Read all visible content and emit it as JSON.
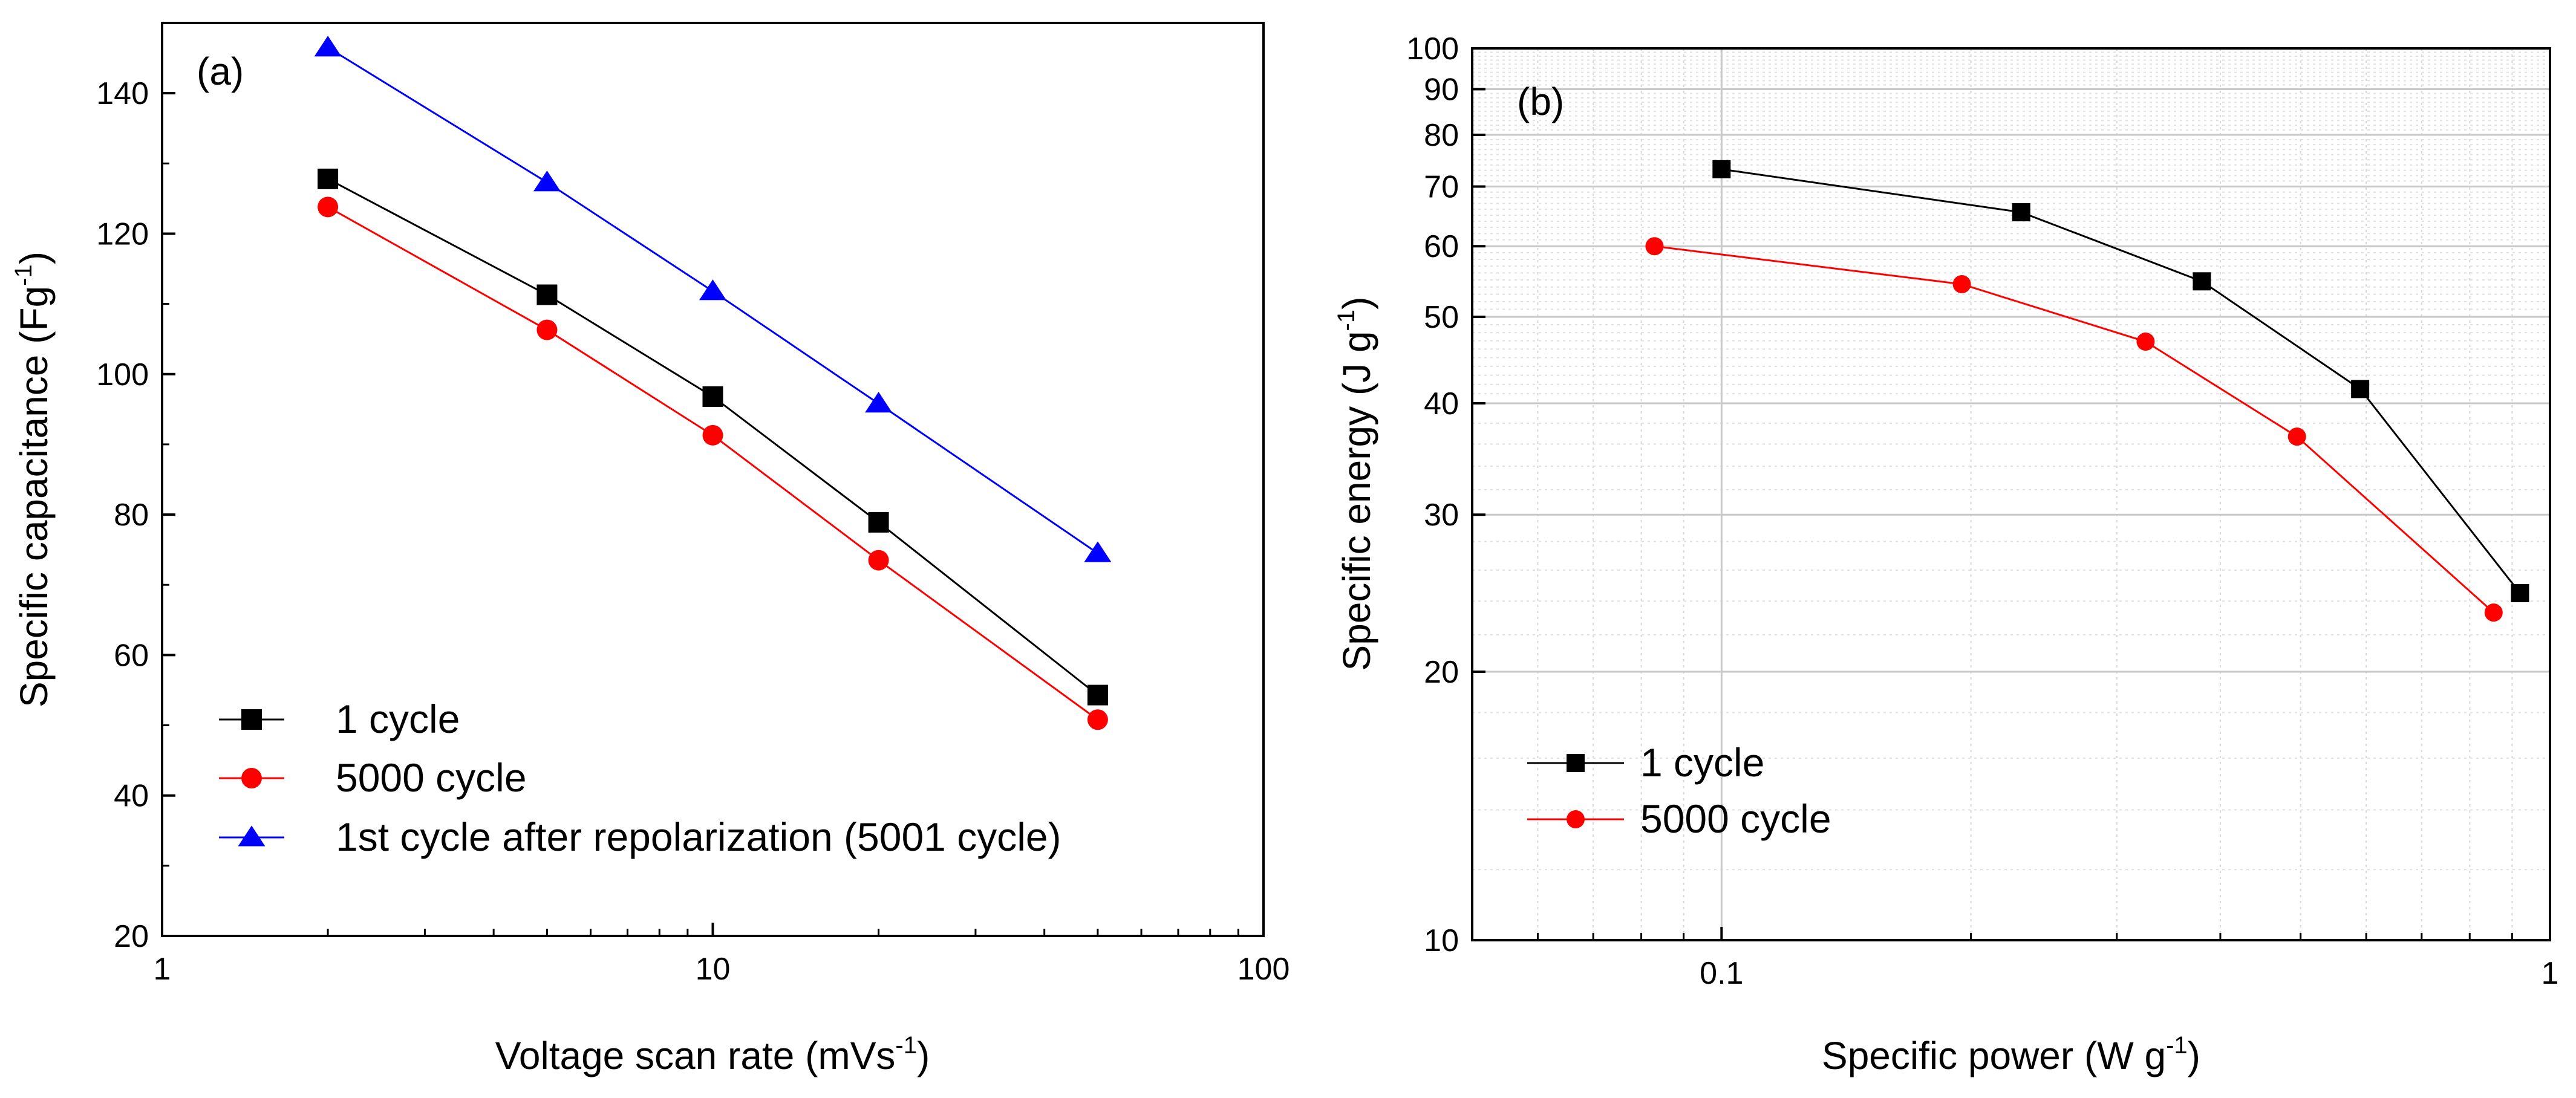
{
  "chart_data": [
    {
      "panel": "(a)",
      "type": "line",
      "xscale": "log",
      "xlim": [
        1,
        100
      ],
      "ylim": [
        20,
        150
      ],
      "xlabel": "Voltage scan rate (mVs",
      "xlabel_sup": "-1",
      "xlabel_end": ")",
      "ylabel": "Specific capacitance (Fg",
      "ylabel_sup": "-1",
      "ylabel_end": ")",
      "xticks": [
        1,
        10,
        100
      ],
      "xtick_labels": [
        "1",
        "10",
        "100"
      ],
      "yticks": [
        20,
        40,
        60,
        80,
        100,
        120,
        140
      ],
      "ytick_labels": [
        "20",
        "40",
        "60",
        "80",
        "100",
        "120",
        "140"
      ],
      "grid": false,
      "legend_position": "bottom-left",
      "x": [
        2,
        5,
        10,
        20,
        50
      ],
      "series": [
        {
          "name": "1 cycle",
          "marker": "square",
          "color": "#000000",
          "line_color": "#000000",
          "values": [
            127.8,
            111.3,
            96.8,
            78.9,
            54.3
          ]
        },
        {
          "name": "5000 cycle",
          "marker": "circle",
          "color": "#ff0000",
          "line_color": "#ff0000",
          "values": [
            123.8,
            106.3,
            91.3,
            73.5,
            50.8
          ]
        },
        {
          "name": "1st cycle after repolarization (5001 cycle)",
          "marker": "triangle",
          "color": "#0000ff",
          "line_color": "#0000ff",
          "values": [
            146.5,
            127.3,
            111.8,
            95.8,
            74.5
          ]
        }
      ]
    },
    {
      "panel": "(b)",
      "type": "line",
      "xscale": "log",
      "yscale": "log",
      "xlim": [
        0.05,
        1
      ],
      "ylim": [
        10,
        100
      ],
      "xlabel": "Specific power (W g",
      "xlabel_sup": "-1",
      "xlabel_end": ")",
      "ylabel": "Specific energy (J g",
      "ylabel_sup": "-1",
      "ylabel_end": ")",
      "xticks": [
        0.1,
        1
      ],
      "xtick_labels": [
        "0.1",
        "1"
      ],
      "yticks": [
        10,
        20,
        30,
        40,
        50,
        60,
        70,
        80,
        90,
        100
      ],
      "ytick_labels": [
        "10",
        "20",
        "30",
        "40",
        "50",
        "60",
        "70",
        "80",
        "90",
        "100"
      ],
      "grid": true,
      "legend_position": "lower-left",
      "series": [
        {
          "name": "1 cycle",
          "marker": "square",
          "color": "#000000",
          "line_color": "#000000",
          "x": [
            0.1,
            0.23,
            0.38,
            0.59,
            0.92
          ],
          "values": [
            73.2,
            65.5,
            54.8,
            41.5,
            24.5
          ]
        },
        {
          "name": "5000 cycle",
          "marker": "circle",
          "color": "#ff0000",
          "line_color": "#ff0000",
          "x": [
            0.083,
            0.195,
            0.325,
            0.495,
            0.855
          ],
          "values": [
            60.0,
            54.4,
            46.9,
            36.7,
            23.3
          ]
        }
      ]
    }
  ]
}
